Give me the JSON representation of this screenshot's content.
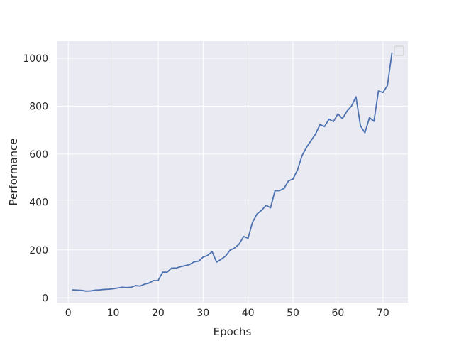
{
  "chart_data": {
    "type": "line",
    "title": "",
    "xlabel": "Epochs",
    "ylabel": "Performance",
    "xlim": [
      -2.55,
      75.55
    ],
    "ylim": [
      -20,
      1071
    ],
    "xticks": [
      0,
      10,
      20,
      30,
      40,
      50,
      60,
      70
    ],
    "yticks": [
      0,
      200,
      400,
      600,
      800,
      1000
    ],
    "grid": true,
    "legend": {
      "position": "top-right",
      "entries": []
    },
    "colors": {
      "background": "#eaeaf2",
      "grid": "#ffffff",
      "line": "#4c72b0",
      "text": "#262626"
    },
    "series": [
      {
        "x": [
          1,
          2,
          3,
          4,
          5,
          6,
          7,
          8,
          9,
          10,
          11,
          12,
          13,
          14,
          15,
          16,
          17,
          18,
          19,
          20,
          21,
          22,
          23,
          24,
          25,
          26,
          27,
          28,
          29,
          30,
          31,
          32,
          33,
          34,
          35,
          36,
          37,
          38,
          39,
          40,
          41,
          42,
          43,
          44,
          45,
          46,
          47,
          48,
          49,
          50,
          51,
          52,
          53,
          54,
          55,
          56,
          57,
          58,
          59,
          60,
          61,
          62,
          63,
          64,
          65,
          66,
          67,
          68,
          69,
          70,
          71,
          72
        ],
        "values": [
          33,
          32,
          31,
          28,
          29,
          32,
          33,
          35,
          36,
          38,
          41,
          44,
          43,
          44,
          51,
          49,
          57,
          62,
          72,
          72,
          107,
          107,
          124,
          124,
          130,
          134,
          139,
          150,
          153,
          170,
          177,
          193,
          149,
          161,
          174,
          199,
          208,
          224,
          256,
          249,
          316,
          350,
          365,
          386,
          376,
          447,
          447,
          457,
          488,
          496,
          534,
          593,
          628,
          656,
          683,
          723,
          715,
          745,
          736,
          768,
          748,
          779,
          800,
          839,
          718,
          689,
          752,
          737,
          863,
          857,
          886,
          1022
        ]
      }
    ]
  }
}
